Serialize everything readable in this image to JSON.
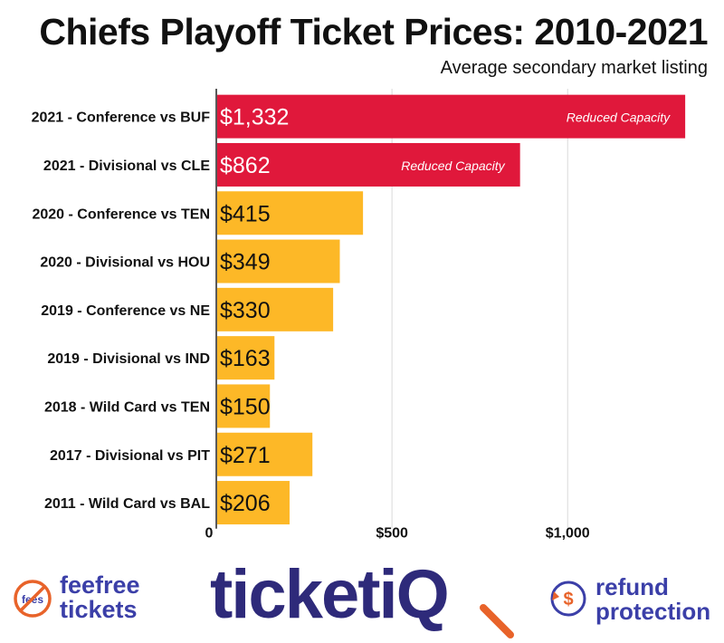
{
  "chart_data": {
    "type": "bar",
    "orientation": "horizontal",
    "title": "Chiefs Playoff Ticket Prices: 2010-2021",
    "subtitle": "Average secondary market listing",
    "categories": [
      "2021 - Conference vs BUF",
      "2021 - Divisional vs CLE",
      "2020 - Conference vs TEN",
      "2020 - Divisional vs HOU",
      "2019 - Conference vs NE",
      "2019 - Divisional vs IND",
      "2018 - Wild Card vs TEN",
      "2017 - Divisional vs PIT",
      "2011 - Wild Card vs BAL"
    ],
    "values": [
      1332,
      862,
      415,
      349,
      330,
      163,
      150,
      271,
      206
    ],
    "value_labels": [
      "$1,332",
      "$862",
      "$415",
      "$349",
      "$330",
      "$163",
      "$150",
      "$271",
      "$206"
    ],
    "annotations": [
      "Reduced Capacity",
      "Reduced Capacity",
      "",
      "",
      "",
      "",
      "",
      "",
      ""
    ],
    "highlight": [
      true,
      true,
      false,
      false,
      false,
      false,
      false,
      false,
      false
    ],
    "xlim": [
      0,
      1360
    ],
    "x_ticks": [
      0,
      500,
      1000
    ],
    "x_tick_labels": [
      "0",
      "$500",
      "$1,000"
    ],
    "grid": true,
    "colors": {
      "highlight": "#e0183b",
      "default": "#fdb827",
      "grid": "#d9d9d9",
      "axis": "#222222"
    }
  },
  "footer": {
    "feefree_badge": "fees",
    "feefree_line1": "feefree",
    "feefree_line2": "tickets",
    "ticketiq_text": "ticketi",
    "ticketiq_q": "Q",
    "refund_icon": "$",
    "refund_line1": "refund",
    "refund_line2": "protection"
  }
}
